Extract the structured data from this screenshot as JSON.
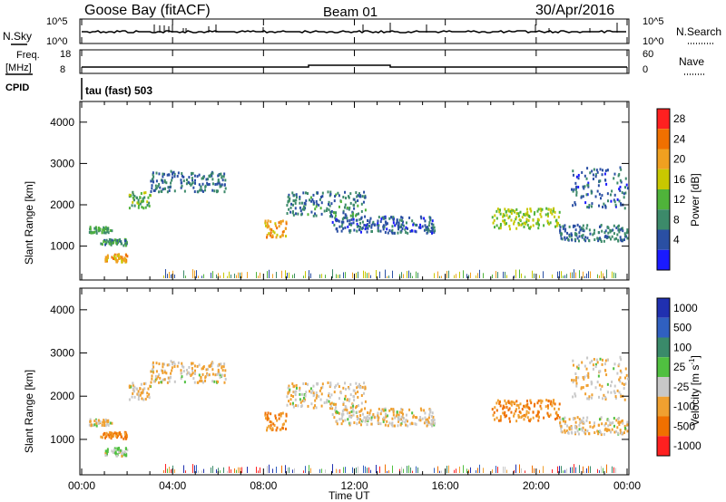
{
  "header": {
    "station": "Goose Bay (fitACF)",
    "beam": "Beam 01",
    "date": "30/Apr/2016"
  },
  "noise_panel": {
    "left_label": "N.Sky",
    "left_ticks": [
      "10^5",
      "10^0"
    ],
    "right_label": "N.Search",
    "right_ticks": [
      "10^5",
      "10^0"
    ]
  },
  "freq_panel": {
    "left_label_1": "Freq.",
    "left_label_2": "[MHz]",
    "left_ticks": [
      "18",
      "8"
    ],
    "right_label": "Nave",
    "right_ticks": [
      "60",
      "0"
    ]
  },
  "cpid": {
    "label": "CPID",
    "program": "tau (fast) 503"
  },
  "power_panel": {
    "ylabel": "Slant Range [km]",
    "yticks": [
      "1000",
      "2000",
      "3000",
      "4000"
    ],
    "colorbar_label": "Power [dB]",
    "colorbar_ticks": [
      "4",
      "8",
      "12",
      "16",
      "20",
      "24",
      "28"
    ],
    "colors": [
      "#1a1aff",
      "#2a4fa3",
      "#3c8a6a",
      "#4fb33a",
      "#c8c800",
      "#f0a020",
      "#f07000",
      "#ff2020"
    ]
  },
  "velocity_panel": {
    "ylabel": "Slant Range [km]",
    "yticks": [
      "1000",
      "2000",
      "3000",
      "4000"
    ],
    "colorbar_label": "Velocity [m s",
    "colorbar_unit_exp": "-1",
    "colorbar_unit_close": "]",
    "colorbar_ticks": [
      "1000",
      "500",
      "100",
      "25",
      "-25",
      "-100",
      "-500",
      "-1000"
    ],
    "colors": [
      "#2030b0",
      "#3060c0",
      "#3a8a6a",
      "#50c040",
      "#c8c8c8",
      "#f0a030",
      "#f07000",
      "#ff2020"
    ]
  },
  "xaxis": {
    "label": "Time UT",
    "ticks": [
      "00:00",
      "04:00",
      "08:00",
      "12:00",
      "16:00",
      "20:00",
      "00:00"
    ]
  },
  "chart_data": {
    "type": "heatmap",
    "time_range_hours": [
      0,
      24
    ],
    "range_km": [
      180,
      4500
    ],
    "panels": [
      "Power [dB]",
      "Velocity [m s-1]"
    ],
    "echo_regions": [
      {
        "t_start": 0.3,
        "t_end": 1.3,
        "r_start": 1300,
        "r_end": 1450,
        "power_db": 12,
        "velocity": -25
      },
      {
        "t_start": 0.8,
        "t_end": 2.0,
        "r_start": 1000,
        "r_end": 1150,
        "power_db": 10,
        "velocity": -100
      },
      {
        "t_start": 1.0,
        "t_end": 2.0,
        "r_start": 600,
        "r_end": 800,
        "power_db": 22,
        "velocity": 25
      },
      {
        "t_start": 2.0,
        "t_end": 3.0,
        "r_start": 1900,
        "r_end": 2300,
        "power_db": 14,
        "velocity": -25
      },
      {
        "t_start": 3.0,
        "t_end": 6.3,
        "r_start": 2300,
        "r_end": 2800,
        "power_db": 8,
        "velocity": -25
      },
      {
        "t_start": 8.0,
        "t_end": 9.0,
        "r_start": 1200,
        "r_end": 1600,
        "power_db": 22,
        "velocity": -100
      },
      {
        "t_start": 9.0,
        "t_end": 12.5,
        "r_start": 1700,
        "r_end": 2300,
        "power_db": 9,
        "velocity": -25
      },
      {
        "t_start": 11.0,
        "t_end": 15.5,
        "r_start": 1300,
        "r_end": 1700,
        "power_db": 7,
        "velocity": -25
      },
      {
        "t_start": 18.0,
        "t_end": 21.0,
        "r_start": 1400,
        "r_end": 1900,
        "power_db": 16,
        "velocity": -100
      },
      {
        "t_start": 21.0,
        "t_end": 24.0,
        "r_start": 1100,
        "r_end": 1500,
        "power_db": 8,
        "velocity": -25
      },
      {
        "t_start": 21.5,
        "t_end": 24.0,
        "r_start": 1900,
        "r_end": 2900,
        "power_db": 7,
        "velocity": -25
      }
    ]
  }
}
